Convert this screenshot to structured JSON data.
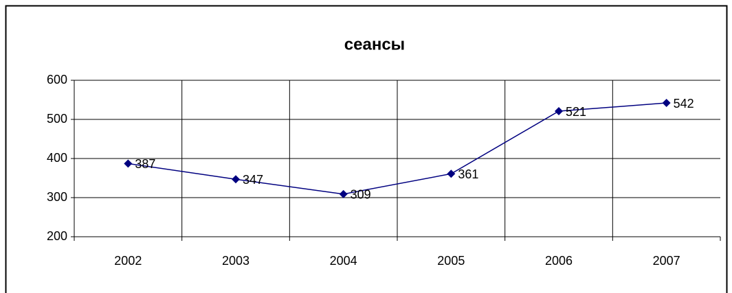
{
  "chart_data": {
    "type": "line",
    "title": "сеансы",
    "categories": [
      "2002",
      "2003",
      "2004",
      "2005",
      "2006",
      "2007"
    ],
    "series": [
      {
        "name": "сеансы",
        "color": "#000080",
        "values": [
          387,
          347,
          309,
          361,
          521,
          542
        ]
      }
    ],
    "ylim": [
      200,
      600
    ],
    "yticks": [
      200,
      300,
      400,
      500,
      600
    ],
    "grid": true
  }
}
